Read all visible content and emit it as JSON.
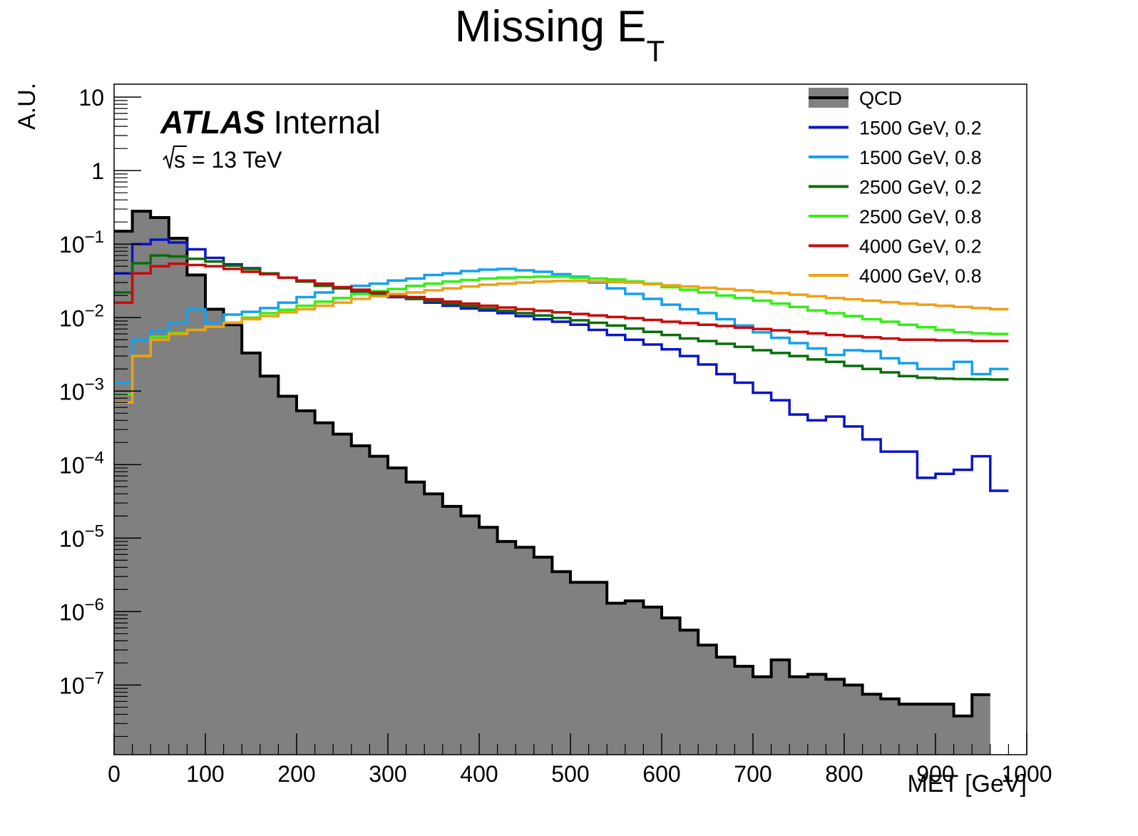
{
  "chart_data": {
    "type": "histogram",
    "title": "Missing E",
    "title_subscript": "T",
    "xlabel": "MET [GeV]",
    "ylabel": "A.U.",
    "atlas_label": "ATLAS",
    "atlas_status": "Internal",
    "energy_label": "s = 13 TeV",
    "xlim": [
      0,
      1000
    ],
    "ylim": [
      1.13e-08,
      15
    ],
    "yscale": "log",
    "x_ticks": [
      0,
      100,
      200,
      300,
      400,
      500,
      600,
      700,
      800,
      900,
      1000
    ],
    "x_tick_labels": [
      "0",
      "100",
      "200",
      "300",
      "400",
      "500",
      "600",
      "700",
      "800",
      "900",
      "1000"
    ],
    "y_ticks": [
      10,
      1,
      0.1,
      0.01,
      0.001,
      0.0001,
      1e-05,
      1e-06,
      1e-07
    ],
    "y_tick_labels": [
      {
        "base": "10",
        "exp": ""
      },
      {
        "base": "1",
        "exp": ""
      },
      {
        "base": "10",
        "exp": "−1"
      },
      {
        "base": "10",
        "exp": "−2"
      },
      {
        "base": "10",
        "exp": "−3"
      },
      {
        "base": "10",
        "exp": "−4"
      },
      {
        "base": "10",
        "exp": "−5"
      },
      {
        "base": "10",
        "exp": "−6"
      },
      {
        "base": "10",
        "exp": "−7"
      }
    ],
    "legend_position": "top-right",
    "bin_edges_from": 0,
    "bin_width": 20,
    "series": [
      {
        "name": "QCD",
        "color": "#000000",
        "fill": "#808080",
        "values": [
          0.15,
          0.28,
          0.23,
          0.12,
          0.038,
          0.013,
          0.008,
          0.0033,
          0.0016,
          0.00085,
          0.00054,
          0.00037,
          0.00026,
          0.00018,
          0.00013,
          9e-05,
          5.8e-05,
          4e-05,
          2.7e-05,
          2e-05,
          1.4e-05,
          9e-06,
          7.5e-06,
          5.5e-06,
          3.5e-06,
          2.5e-06,
          2.5e-06,
          1.3e-06,
          1.4e-06,
          1.15e-06,
          8.2e-07,
          5.6e-07,
          3.5e-07,
          2.4e-07,
          1.8e-07,
          1.3e-07,
          2.2e-07,
          1.3e-07,
          1.4e-07,
          1.2e-07,
          1e-07,
          7.5e-08,
          6.5e-08,
          5.5e-08,
          5.5e-08,
          5.5e-08,
          3.8e-08,
          7.4e-08
        ]
      },
      {
        "name": "1500 GeV, 0.2",
        "color": "#0a14c8",
        "values": [
          0.04,
          0.1,
          0.115,
          0.105,
          0.085,
          0.065,
          0.053,
          0.047,
          0.04,
          0.035,
          0.031,
          0.027,
          0.025,
          0.022,
          0.021,
          0.019,
          0.018,
          0.016,
          0.0145,
          0.0133,
          0.0125,
          0.0115,
          0.0105,
          0.0095,
          0.0088,
          0.008,
          0.0068,
          0.0058,
          0.005,
          0.0043,
          0.0037,
          0.003,
          0.0023,
          0.0017,
          0.0013,
          0.00095,
          0.00075,
          0.00048,
          0.0004,
          0.00045,
          0.00033,
          0.00022,
          0.00015,
          0.00015,
          6.6e-05,
          7.5e-05,
          8.5e-05,
          0.00013,
          4.4e-05
        ]
      },
      {
        "name": "1500 GeV, 0.8",
        "color": "#14a0f0",
        "values": [
          0.0013,
          0.005,
          0.0065,
          0.0085,
          0.013,
          0.0085,
          0.011,
          0.012,
          0.0135,
          0.016,
          0.019,
          0.022,
          0.025,
          0.027,
          0.029,
          0.032,
          0.034,
          0.038,
          0.04,
          0.043,
          0.045,
          0.046,
          0.044,
          0.042,
          0.039,
          0.036,
          0.03,
          0.025,
          0.021,
          0.018,
          0.015,
          0.013,
          0.0115,
          0.0095,
          0.0078,
          0.0063,
          0.0053,
          0.0045,
          0.0038,
          0.0031,
          0.0036,
          0.0035,
          0.0028,
          0.0024,
          0.002,
          0.002,
          0.0025,
          0.0017,
          0.002
        ]
      },
      {
        "name": "2500 GeV, 0.2",
        "color": "#0a6e0a",
        "values": [
          0.022,
          0.055,
          0.07,
          0.068,
          0.063,
          0.058,
          0.051,
          0.046,
          0.04,
          0.035,
          0.031,
          0.027,
          0.025,
          0.023,
          0.021,
          0.0195,
          0.018,
          0.0168,
          0.0155,
          0.0143,
          0.0133,
          0.0124,
          0.0115,
          0.0107,
          0.0099,
          0.0092,
          0.0085,
          0.0078,
          0.0071,
          0.0064,
          0.0058,
          0.0052,
          0.0048,
          0.0044,
          0.004,
          0.0036,
          0.0033,
          0.003,
          0.0027,
          0.0025,
          0.0022,
          0.002,
          0.0018,
          0.0016,
          0.00152,
          0.00148,
          0.00146,
          0.00145,
          0.00144
        ]
      },
      {
        "name": "2500 GeV, 0.8",
        "color": "#32f014",
        "values": [
          0.0009,
          0.003,
          0.0055,
          0.0062,
          0.0068,
          0.0075,
          0.0085,
          0.01,
          0.0115,
          0.0128,
          0.0145,
          0.0165,
          0.0185,
          0.021,
          0.023,
          0.0245,
          0.027,
          0.029,
          0.031,
          0.0325,
          0.034,
          0.035,
          0.0355,
          0.036,
          0.036,
          0.035,
          0.034,
          0.033,
          0.031,
          0.029,
          0.026,
          0.024,
          0.022,
          0.02,
          0.0185,
          0.017,
          0.0155,
          0.014,
          0.0125,
          0.0115,
          0.0105,
          0.0095,
          0.0088,
          0.008,
          0.0074,
          0.0068,
          0.0063,
          0.0061,
          0.006
        ]
      },
      {
        "name": "4000 GeV, 0.2",
        "color": "#c80a0a",
        "values": [
          0.016,
          0.04,
          0.05,
          0.054,
          0.052,
          0.05,
          0.046,
          0.042,
          0.039,
          0.035,
          0.032,
          0.029,
          0.026,
          0.024,
          0.022,
          0.02,
          0.019,
          0.0178,
          0.0165,
          0.0155,
          0.0145,
          0.0137,
          0.013,
          0.0124,
          0.0118,
          0.0112,
          0.0107,
          0.0102,
          0.0098,
          0.0093,
          0.0088,
          0.0084,
          0.008,
          0.0077,
          0.0073,
          0.007,
          0.0067,
          0.0064,
          0.0061,
          0.0058,
          0.0056,
          0.0054,
          0.0052,
          0.005,
          0.005,
          0.0049,
          0.0049,
          0.0048,
          0.0048
        ]
      },
      {
        "name": "4000 GeV, 0.8",
        "color": "#f0a014",
        "values": [
          0.0007,
          0.003,
          0.005,
          0.006,
          0.0068,
          0.0075,
          0.0085,
          0.0095,
          0.0105,
          0.0118,
          0.013,
          0.0145,
          0.016,
          0.018,
          0.0195,
          0.021,
          0.022,
          0.0235,
          0.025,
          0.0265,
          0.028,
          0.029,
          0.03,
          0.031,
          0.0315,
          0.0315,
          0.031,
          0.0305,
          0.03,
          0.0285,
          0.0275,
          0.0265,
          0.0255,
          0.0245,
          0.0235,
          0.0225,
          0.0215,
          0.0205,
          0.0195,
          0.0185,
          0.0178,
          0.017,
          0.0162,
          0.0155,
          0.015,
          0.0145,
          0.014,
          0.0135,
          0.013
        ]
      }
    ]
  }
}
